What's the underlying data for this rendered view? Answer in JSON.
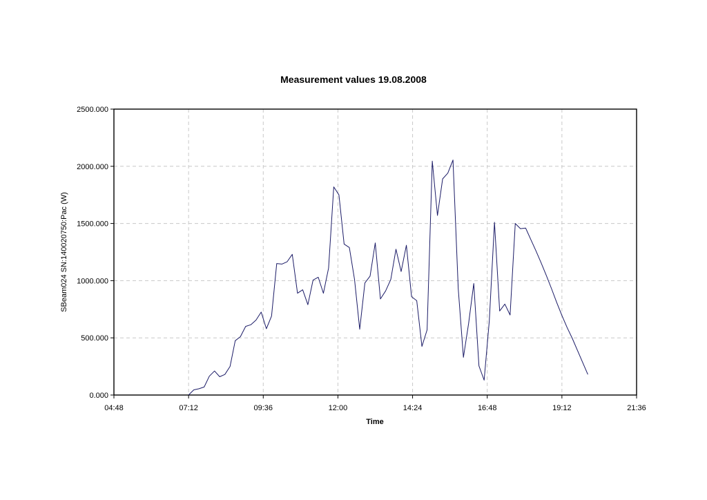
{
  "chart_data": {
    "type": "line",
    "title": "Measurement values 19.08.2008",
    "xlabel": "Time",
    "ylabel": "SBeam024 SN:140020750:Pac (W)",
    "x_ticks": [
      "04:48",
      "07:12",
      "09:36",
      "12:00",
      "14:24",
      "16:48",
      "19:12",
      "21:36"
    ],
    "y_ticks": [
      "0.000",
      "500.000",
      "1000.000",
      "1500.000",
      "2000.000",
      "2500.000"
    ],
    "xlim": [
      "04:48",
      "21:36"
    ],
    "ylim": [
      0,
      2500
    ],
    "grid": true,
    "series_color": "#1a1a66",
    "series": [
      {
        "x": [
          "07:12",
          "07:22",
          "07:32",
          "07:42",
          "07:52",
          "08:02",
          "08:12",
          "08:22",
          "08:32",
          "08:42",
          "08:52",
          "09:02",
          "09:12",
          "09:22",
          "09:32",
          "09:42",
          "09:52",
          "10:02",
          "10:12",
          "10:22",
          "10:32",
          "10:42",
          "10:52",
          "11:02",
          "11:12",
          "11:22",
          "11:32",
          "11:42",
          "11:52",
          "12:02",
          "12:12",
          "12:22",
          "12:32",
          "12:42",
          "12:52",
          "13:02",
          "13:12",
          "13:22",
          "13:32",
          "13:42",
          "13:52",
          "14:02",
          "14:12",
          "14:22",
          "14:32",
          "14:42",
          "14:52",
          "15:02",
          "15:12",
          "15:22",
          "15:32",
          "15:42",
          "15:52",
          "16:02",
          "16:12",
          "16:22",
          "16:32",
          "16:42",
          "16:52",
          "17:02",
          "17:12",
          "17:22",
          "17:32",
          "17:42",
          "17:52",
          "18:02",
          "18:12",
          "18:22",
          "18:32",
          "18:42",
          "18:52",
          "19:02",
          "19:12",
          "19:22",
          "19:32",
          "19:42",
          "19:52",
          "20:02"
        ],
        "values": [
          0,
          45,
          55,
          70,
          165,
          210,
          160,
          180,
          250,
          475,
          510,
          600,
          615,
          655,
          725,
          580,
          690,
          1150,
          1145,
          1165,
          1230,
          890,
          920,
          790,
          1005,
          1030,
          890,
          1110,
          1820,
          1750,
          1320,
          1290,
          1010,
          575,
          980,
          1040,
          1330,
          840,
          910,
          1010,
          1275,
          1080,
          1310,
          860,
          825,
          425,
          570,
          2045,
          1570,
          1890,
          1940,
          2055,
          930,
          330,
          625,
          975,
          255,
          130,
          650,
          1510,
          735,
          795,
          700,
          1500,
          1455,
          1460,
          1360,
          1260,
          1155,
          1045,
          930,
          810,
          695,
          590,
          495,
          390,
          285,
          180
        ]
      }
    ]
  }
}
